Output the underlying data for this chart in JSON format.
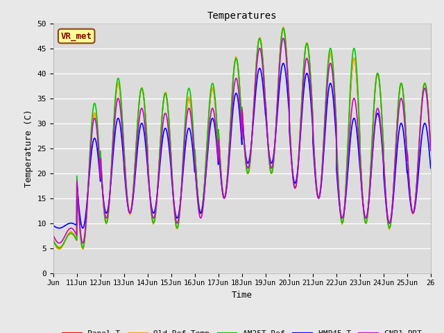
{
  "title": "Temperatures",
  "xlabel": "Time",
  "ylabel": "Temperature (C)",
  "station_label": "VR_met",
  "xlim": [
    0,
    16
  ],
  "ylim": [
    0,
    50
  ],
  "yticks": [
    0,
    5,
    10,
    15,
    20,
    25,
    30,
    35,
    40,
    45,
    50
  ],
  "xtick_positions": [
    0,
    1,
    2,
    3,
    4,
    5,
    6,
    7,
    8,
    9,
    10,
    11,
    12,
    13,
    14,
    15,
    16
  ],
  "xtick_labels": [
    "Jun",
    "11Jun",
    "12Jun",
    "13Jun",
    "14Jun",
    "15Jun",
    "16Jun",
    "17Jun",
    "18Jun",
    "19Jun",
    "20Jun",
    "21Jun",
    "22Jun",
    "23Jun",
    "24Jun",
    "25Jun",
    "26"
  ],
  "series": {
    "Panel T": {
      "color": "#ff0000"
    },
    "Old Ref Temp": {
      "color": "#ffa500"
    },
    "AM25T Ref": {
      "color": "#00cc00"
    },
    "HMP45 T": {
      "color": "#0000ff"
    },
    "CNR1 PRT": {
      "color": "#cc00cc"
    }
  },
  "bg_color": "#e8e8e8",
  "plot_bg_color": "#dcdcdc",
  "grid_color": "#ffffff",
  "n_days": 16,
  "base_min": [
    5,
    5,
    10,
    12,
    10,
    9,
    12,
    15,
    20,
    20,
    17,
    15,
    10,
    10,
    9,
    12
  ],
  "base_max": [
    8,
    32,
    38,
    37,
    36,
    35,
    37,
    43,
    47,
    49,
    46,
    44,
    43,
    40,
    38,
    38
  ],
  "am25_min": [
    5,
    5,
    10,
    12,
    10,
    9,
    12,
    15,
    20,
    20,
    17,
    15,
    10,
    10,
    9,
    12
  ],
  "am25_max": [
    8,
    34,
    39,
    37,
    36,
    37,
    38,
    43,
    47,
    49,
    46,
    45,
    45,
    40,
    38,
    38
  ],
  "hmp_min": [
    9,
    9,
    12,
    12,
    12,
    11,
    12,
    15,
    22,
    22,
    18,
    15,
    11,
    11,
    10,
    12
  ],
  "hmp_max": [
    10,
    27,
    31,
    30,
    29,
    29,
    31,
    36,
    41,
    42,
    40,
    38,
    31,
    32,
    30,
    30
  ],
  "cnr_min": [
    6,
    6,
    11,
    12,
    11,
    10,
    11,
    15,
    21,
    21,
    17,
    15,
    11,
    11,
    10,
    12
  ],
  "cnr_max": [
    9,
    31,
    35,
    33,
    32,
    33,
    33,
    39,
    45,
    47,
    43,
    42,
    35,
    33,
    35,
    37
  ],
  "lw": 1.2
}
